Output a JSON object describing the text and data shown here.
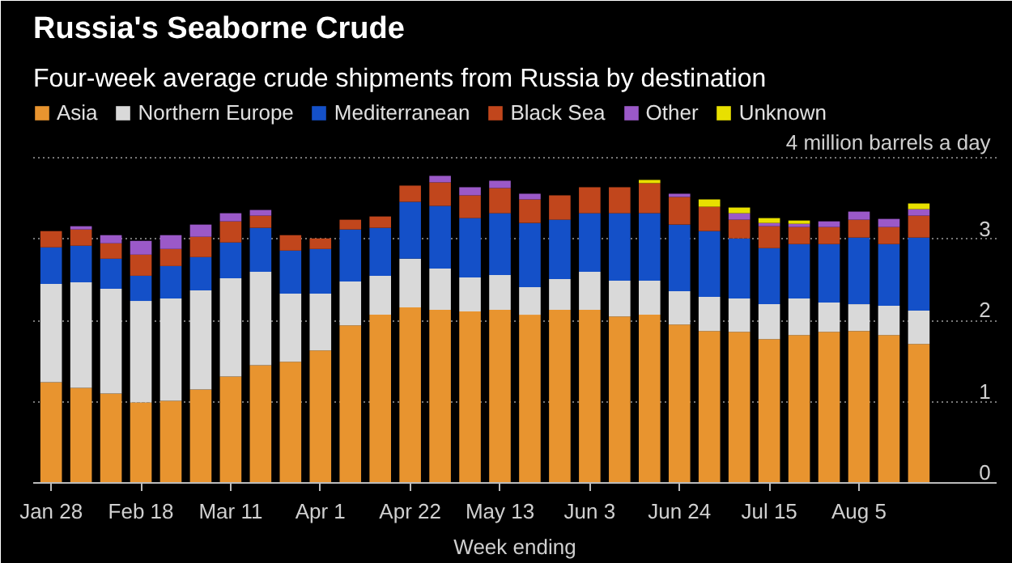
{
  "chart_data": {
    "type": "bar",
    "title": "Russia's Seaborne Crude",
    "subtitle": "Four-week average crude shipments from Russia by destination",
    "xlabel": "Week ending",
    "stacked": true,
    "categories": [
      "Jan 28",
      null,
      null,
      "Feb 18",
      null,
      null,
      "Mar 11",
      null,
      null,
      "Apr 1",
      null,
      null,
      "Apr 22",
      null,
      null,
      "May 13",
      null,
      null,
      "Jun 3",
      null,
      null,
      "Jun 24",
      null,
      null,
      "Jul 15",
      null,
      null,
      "Aug 5",
      null,
      null
    ],
    "series": [
      {
        "name": "Asia",
        "color": "#e8942f",
        "values": [
          1.24,
          1.17,
          1.1,
          0.99,
          1.01,
          1.15,
          1.31,
          1.45,
          1.49,
          1.63,
          1.94,
          2.07,
          2.16,
          2.13,
          2.11,
          2.13,
          2.07,
          2.13,
          2.13,
          2.05,
          2.07,
          1.95,
          1.87,
          1.86,
          1.77,
          1.82,
          1.86,
          1.87,
          1.82,
          1.71
        ]
      },
      {
        "name": "Northern Europe",
        "color": "#d9d9d9",
        "values": [
          1.21,
          1.3,
          1.29,
          1.25,
          1.26,
          1.22,
          1.21,
          1.15,
          0.84,
          0.7,
          0.54,
          0.48,
          0.6,
          0.51,
          0.42,
          0.43,
          0.34,
          0.38,
          0.47,
          0.44,
          0.42,
          0.41,
          0.42,
          0.41,
          0.43,
          0.45,
          0.36,
          0.33,
          0.36,
          0.41
        ]
      },
      {
        "name": "Mediterranean",
        "color": "#1450c8",
        "values": [
          0.45,
          0.45,
          0.37,
          0.31,
          0.4,
          0.41,
          0.44,
          0.54,
          0.53,
          0.55,
          0.64,
          0.59,
          0.7,
          0.77,
          0.73,
          0.76,
          0.79,
          0.73,
          0.72,
          0.83,
          0.83,
          0.82,
          0.81,
          0.74,
          0.69,
          0.67,
          0.72,
          0.82,
          0.76,
          0.9
        ]
      },
      {
        "name": "Black Sea",
        "color": "#c1461c",
        "values": [
          0.2,
          0.2,
          0.19,
          0.26,
          0.21,
          0.25,
          0.26,
          0.15,
          0.19,
          0.13,
          0.12,
          0.14,
          0.2,
          0.29,
          0.28,
          0.31,
          0.29,
          0.3,
          0.32,
          0.32,
          0.37,
          0.34,
          0.3,
          0.23,
          0.27,
          0.21,
          0.21,
          0.22,
          0.21,
          0.27
        ]
      },
      {
        "name": "Other",
        "color": "#9b59c8",
        "values": [
          null,
          0.04,
          0.1,
          0.17,
          0.17,
          0.15,
          0.1,
          0.07,
          null,
          null,
          null,
          null,
          null,
          0.08,
          0.1,
          0.09,
          0.07,
          null,
          null,
          null,
          null,
          0.04,
          null,
          0.08,
          0.04,
          0.04,
          0.07,
          0.1,
          0.1,
          0.08
        ]
      },
      {
        "name": "Unknown",
        "color": "#e8e000",
        "values": [
          null,
          null,
          null,
          null,
          null,
          null,
          null,
          null,
          null,
          null,
          null,
          null,
          null,
          null,
          null,
          null,
          null,
          null,
          null,
          null,
          0.04,
          null,
          0.09,
          0.07,
          0.06,
          0.04,
          null,
          null,
          null,
          0.07
        ]
      }
    ],
    "ylim": [
      0,
      4.7
    ],
    "yticks": [
      0,
      1,
      2,
      3,
      {
        "value": 4,
        "label": "4 million barrels a day"
      }
    ],
    "grid": "y",
    "legend": "top left"
  }
}
